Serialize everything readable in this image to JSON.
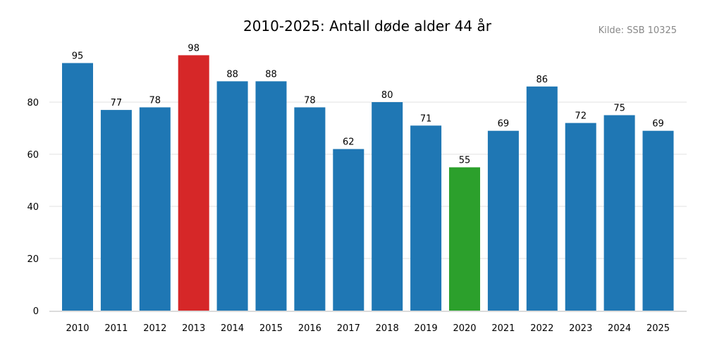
{
  "chart_data": {
    "type": "bar",
    "title": "2010-2025: Antall døde alder 44 år",
    "source": "Kilde: SSB 10325",
    "xlabel": "",
    "ylabel": "",
    "categories": [
      "2010",
      "2011",
      "2012",
      "2013",
      "2014",
      "2015",
      "2016",
      "2017",
      "2018",
      "2019",
      "2020",
      "2021",
      "2022",
      "2023",
      "2024",
      "2025"
    ],
    "values": [
      95,
      77,
      78,
      98,
      88,
      88,
      78,
      62,
      80,
      71,
      55,
      69,
      86,
      72,
      75,
      69
    ],
    "ylim": [
      0,
      103
    ],
    "yticks": [
      0,
      20,
      40,
      60,
      80
    ],
    "grid": true,
    "colors": {
      "default": "#1f77b4",
      "max": "#d62728",
      "min": "#2ca02c"
    },
    "highlight": {
      "2013": "max",
      "2020": "min"
    }
  }
}
